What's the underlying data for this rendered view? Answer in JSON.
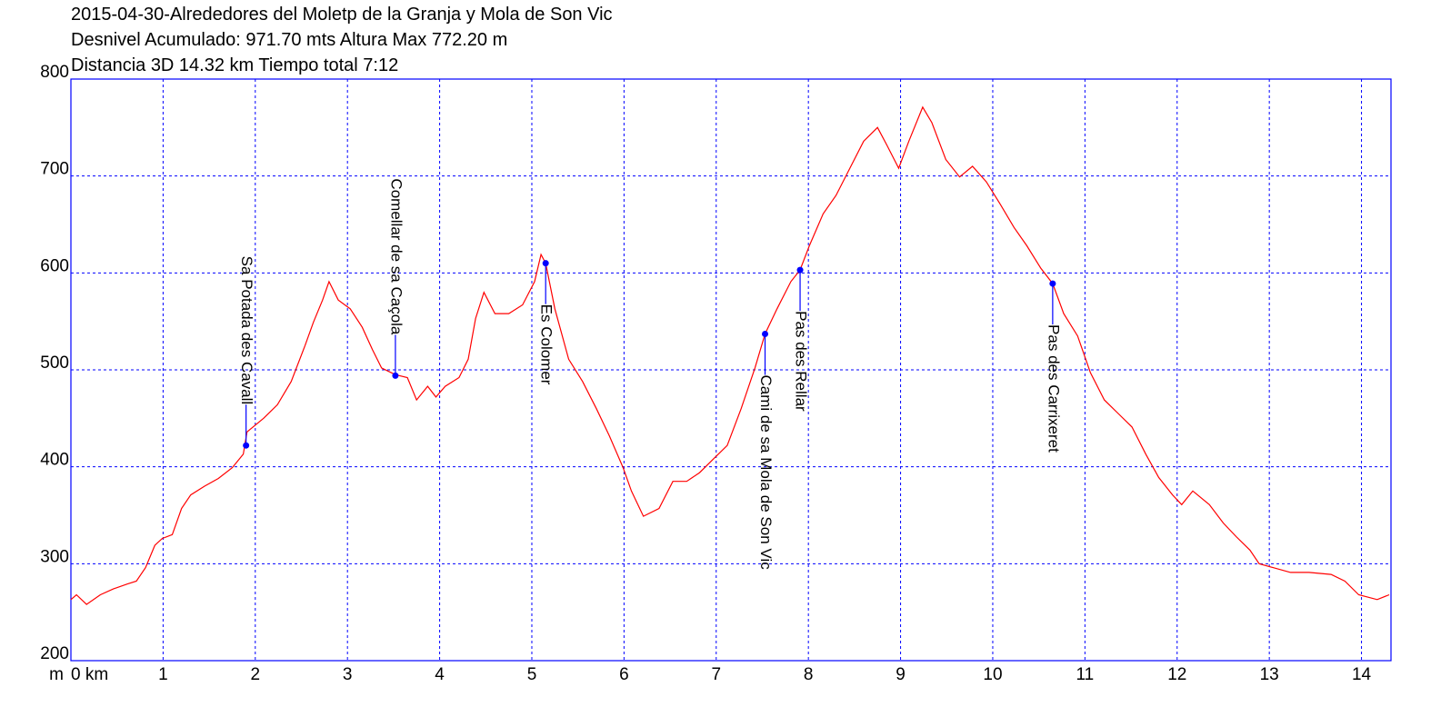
{
  "chart_data": {
    "type": "line",
    "title_lines": [
      "2015-04-30-Alrededores del Moletp de la Granja y Mola de Son Vic",
      "Desnivel Acumulado: 971.70 mts  Altura Max 772.20 m",
      "Distancia 3D 14.32 km  Tiempo total 7:12"
    ],
    "y_unit": "m",
    "x": [
      0,
      0.06,
      0.17,
      0.32,
      0.46,
      0.61,
      0.71,
      0.81,
      0.91,
      0.99,
      1.1,
      1.2,
      1.3,
      1.45,
      1.6,
      1.75,
      1.87,
      1.91,
      2.09,
      2.24,
      2.39,
      2.54,
      2.63,
      2.73,
      2.8,
      2.9,
      3.03,
      3.16,
      3.27,
      3.37,
      3.52,
      3.65,
      3.75,
      3.87,
      3.96,
      4.06,
      4.21,
      4.31,
      4.39,
      4.48,
      4.6,
      4.75,
      4.9,
      5.03,
      5.1,
      5.15,
      5.25,
      5.4,
      5.55,
      5.7,
      5.84,
      5.99,
      6.08,
      6.21,
      6.38,
      6.53,
      6.68,
      6.82,
      6.97,
      7.12,
      7.27,
      7.42,
      7.53,
      7.66,
      7.81,
      7.91,
      8.01,
      8.16,
      8.3,
      8.45,
      8.6,
      8.75,
      8.85,
      8.98,
      9.09,
      9.24,
      9.34,
      9.49,
      9.64,
      9.78,
      9.93,
      10.08,
      10.23,
      10.37,
      10.52,
      10.65,
      10.77,
      10.92,
      11.06,
      11.21,
      11.36,
      11.51,
      11.66,
      11.8,
      11.95,
      12.05,
      12.17,
      12.35,
      12.5,
      12.64,
      12.79,
      12.89,
      13.04,
      13.23,
      13.43,
      13.67,
      13.82,
      13.97,
      14.17,
      14.3
    ],
    "series": [
      {
        "color": "#ff0000",
        "values": [
          263,
          268,
          258,
          268,
          274,
          279,
          282,
          296,
          319,
          326,
          330,
          357,
          371,
          380,
          388,
          399,
          413,
          436,
          450,
          464,
          488,
          525,
          549,
          572,
          591,
          572,
          563,
          544,
          521,
          502,
          495,
          492,
          469,
          483,
          472,
          483,
          492,
          511,
          553,
          580,
          558,
          558,
          567,
          591,
          619,
          610,
          563,
          511,
          488,
          460,
          432,
          399,
          375,
          349,
          357,
          385,
          385,
          394,
          408,
          422,
          460,
          502,
          537,
          563,
          591,
          603,
          628,
          661,
          680,
          708,
          736,
          750,
          732,
          708,
          736,
          771,
          755,
          717,
          699,
          710,
          694,
          671,
          647,
          628,
          605,
          589,
          558,
          535,
          497,
          469,
          455,
          441,
          413,
          389,
          371,
          361,
          375,
          361,
          342,
          328,
          314,
          300,
          296,
          291,
          291,
          289,
          282,
          268,
          263,
          268
        ]
      }
    ],
    "annotations": [
      {
        "label": "Sa Potada des Cavall",
        "x": 1.9,
        "y": 422,
        "side": "above"
      },
      {
        "label": "Comellar de sa Caçola",
        "x": 3.52,
        "y": 494,
        "side": "above"
      },
      {
        "label": "Es Colomer",
        "x": 5.15,
        "y": 610,
        "side": "below"
      },
      {
        "label": "Cami de sa Mola de Son Vic",
        "x": 7.53,
        "y": 537,
        "side": "below"
      },
      {
        "label": "Pas des Rellar",
        "x": 7.91,
        "y": 603,
        "side": "below"
      },
      {
        "label": "Pas des Carrixeret",
        "x": 10.65,
        "y": 589,
        "side": "below"
      }
    ],
    "annotation_color": "#0000ff",
    "grid_color": "#0000ff",
    "xlim": [
      0,
      14.32
    ],
    "ylim": [
      200,
      800
    ],
    "xticks": [
      {
        "value": 0,
        "label": "0 km"
      },
      1,
      2,
      3,
      4,
      5,
      6,
      7,
      8,
      9,
      10,
      11,
      12,
      13,
      14
    ],
    "yticks": [
      200,
      300,
      400,
      500,
      600,
      700,
      800
    ],
    "grid": true
  }
}
